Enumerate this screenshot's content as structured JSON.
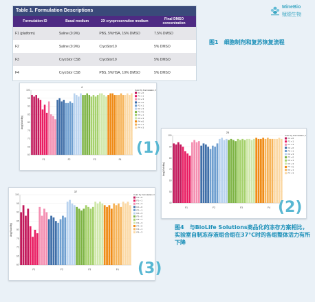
{
  "logo": {
    "name_en": "MineBio",
    "name_cn": "赋德生物"
  },
  "table": {
    "title": "Table 1. Formulation Descriptions",
    "headers": [
      "Formulation ID",
      "Basal medium",
      "2X cryopreservation medium",
      "Final DMSO concentration"
    ],
    "rows": [
      [
        "F1 (platform)",
        "Saline (0.9%)",
        "PBS, 5%HSA, 15% DMSO",
        "7.5% DMSO"
      ],
      [
        "F2",
        "Saline (0.9%)",
        "CryoStor10",
        "5% DMSO"
      ],
      [
        "F3",
        "CryoStor CS8",
        "CryoStor10",
        "5% DMSO"
      ],
      [
        "F4",
        "CryoStor CS8",
        "PBS, 5%HSA, 10% DMSO",
        "5% DMSO"
      ]
    ]
  },
  "caption1": "图1　细胞制剂和复苏恢复流程",
  "caption4": "图4　与BioLife Solutions商品化的冻存方案相比，实验室自制冻存液组合组在37°C时的各组整体活力有所下降",
  "badges": [
    "(1)",
    "(2)",
    "(3)"
  ],
  "colors": {
    "F1_d0": "#c2185b",
    "F1_d1": "#e91e63",
    "F1_d3": "#f48fb1",
    "F2_d0": "#3f6ea8",
    "F2_d1": "#6f9fd0",
    "F2_d3": "#b9d3ef",
    "F3_d0": "#7cb342",
    "F3_d1": "#a5d16c",
    "F3_d3": "#cfe7a9",
    "F4_d0": "#ef8b16",
    "F4_d1": "#f6b45a",
    "F4_d3": "#fbd9a6",
    "accent": "#1a8fb8"
  },
  "chart_data": [
    {
      "type": "bar",
      "title": "4",
      "ylabel": "Avg(Viability)",
      "legend_title": "Color by Formulation, Day",
      "legend": [
        "F1 + 0",
        "F1 + 1",
        "F1 + 3",
        "F2 + 0",
        "F2 + 1",
        "F2 + 3",
        "F3 + 0",
        "F3 + 1",
        "F3 + 3",
        "F4 + 0",
        "F4 + 1",
        "F4 + 3"
      ],
      "yticks": [
        60,
        65,
        70,
        75,
        80,
        85,
        90,
        95,
        100
      ],
      "ylim": [
        60,
        100
      ],
      "groups": [
        "F1",
        "F2",
        "F3",
        "F4"
      ],
      "series": [
        {
          "name": "F1 + 0",
          "values": [
            97,
            96,
            97,
            95
          ]
        },
        {
          "name": "F1 + 1",
          "values": [
            94,
            88,
            91,
            86
          ]
        },
        {
          "name": "F1 + 3",
          "values": [
            93,
            85,
            84,
            82
          ]
        },
        {
          "name": "F2 + 0",
          "values": [
            94,
            95,
            93,
            94
          ]
        },
        {
          "name": "F2 + 1",
          "values": [
            92,
            92,
            93,
            92
          ]
        },
        {
          "name": "F2 + 3",
          "values": [
            98,
            97,
            96,
            98
          ]
        },
        {
          "name": "F3 + 0",
          "values": [
            97,
            97,
            98,
            97
          ]
        },
        {
          "name": "F3 + 1",
          "values": [
            96,
            97,
            96,
            97
          ]
        },
        {
          "name": "F3 + 3",
          "values": [
            98,
            98,
            97,
            96
          ]
        },
        {
          "name": "F4 + 0",
          "values": [
            97,
            98,
            98,
            97
          ]
        },
        {
          "name": "F4 + 1",
          "values": [
            97,
            97,
            98,
            97
          ]
        },
        {
          "name": "F4 + 3",
          "values": [
            97,
            98,
            97,
            98
          ]
        }
      ]
    },
    {
      "type": "bar",
      "title": "25",
      "ylabel": "Avg(Viability)",
      "legend_title": "Color by Formulation, Day",
      "legend": [
        "F1 + 0",
        "F1 + 1",
        "F1 + 3",
        "F2 + 0",
        "F2 + 1",
        "F2 + 3",
        "F3 + 0",
        "F3 + 1",
        "F3 + 3",
        "F4 + 0",
        "F4 + 1",
        "F4 + 3"
      ],
      "yticks": [
        40,
        50,
        60,
        70,
        80,
        90,
        100
      ],
      "ylim": [
        40,
        100
      ],
      "groups": [
        "F1",
        "F2",
        "F3",
        "F4"
      ],
      "series": [
        {
          "name": "F1 + 0",
          "values": [
            93,
            92,
            94,
            92
          ]
        },
        {
          "name": "F1 + 1",
          "values": [
            90,
            86,
            84,
            82
          ]
        },
        {
          "name": "F1 + 3",
          "values": [
            94,
            96,
            94,
            95
          ]
        },
        {
          "name": "F2 + 0",
          "values": [
            91,
            93,
            92,
            90
          ]
        },
        {
          "name": "F2 + 1",
          "values": [
            88,
            91,
            90,
            93
          ]
        },
        {
          "name": "F2 + 3",
          "values": [
            97,
            98,
            96,
            97
          ]
        },
        {
          "name": "F3 + 0",
          "values": [
            96,
            97,
            96,
            95
          ]
        },
        {
          "name": "F3 + 1",
          "values": [
            97,
            96,
            97,
            96
          ]
        },
        {
          "name": "F3 + 3",
          "values": [
            97,
            97,
            96,
            97
          ]
        },
        {
          "name": "F4 + 0",
          "values": [
            98,
            97,
            97,
            98
          ]
        },
        {
          "name": "F4 + 1",
          "values": [
            97,
            98,
            97,
            97
          ]
        },
        {
          "name": "F4 + 3",
          "values": [
            97,
            97,
            98,
            97
          ]
        }
      ]
    },
    {
      "type": "bar",
      "title": "37",
      "ylabel": "Avg(Viability)",
      "legend_title": "Color by Formulation, Day",
      "legend": [
        "F1 + 0",
        "F1 + 1",
        "F1 + 3",
        "F2 + 0",
        "F2 + 1",
        "F2 + 3",
        "F3 + 0",
        "F3 + 1",
        "F3 + 3",
        "F4 + 0",
        "F4 + 1",
        "F4 + 3"
      ],
      "yticks": [
        60,
        65,
        70,
        75,
        80,
        85,
        90,
        95,
        100
      ],
      "ylim": [
        60,
        100
      ],
      "groups": [
        "F1",
        "F2",
        "F3",
        "F4"
      ],
      "series": [
        {
          "name": "F1 + 0",
          "values": [
            90,
            94,
            88,
            92
          ]
        },
        {
          "name": "F1 + 1",
          "values": [
            82,
            76,
            80,
            78
          ]
        },
        {
          "name": "F1 + 3",
          "values": [
            93,
            88,
            92,
            90
          ]
        },
        {
          "name": "F2 + 0",
          "values": [
            86,
            88,
            87,
            85
          ]
        },
        {
          "name": "F2 + 1",
          "values": [
            84,
            86,
            88,
            87
          ]
        },
        {
          "name": "F2 + 3",
          "values": [
            96,
            97,
            95,
            94
          ]
        },
        {
          "name": "F3 + 0",
          "values": [
            93,
            92,
            91,
            92
          ]
        },
        {
          "name": "F3 + 1",
          "values": [
            94,
            93,
            92,
            93
          ]
        },
        {
          "name": "F3 + 3",
          "values": [
            96,
            95,
            96,
            95
          ]
        },
        {
          "name": "F4 + 0",
          "values": [
            94,
            93,
            94,
            92
          ]
        },
        {
          "name": "F4 + 1",
          "values": [
            95,
            94,
            95,
            93
          ]
        },
        {
          "name": "F4 + 3",
          "values": [
            96,
            95,
            96,
            94
          ]
        }
      ]
    }
  ]
}
